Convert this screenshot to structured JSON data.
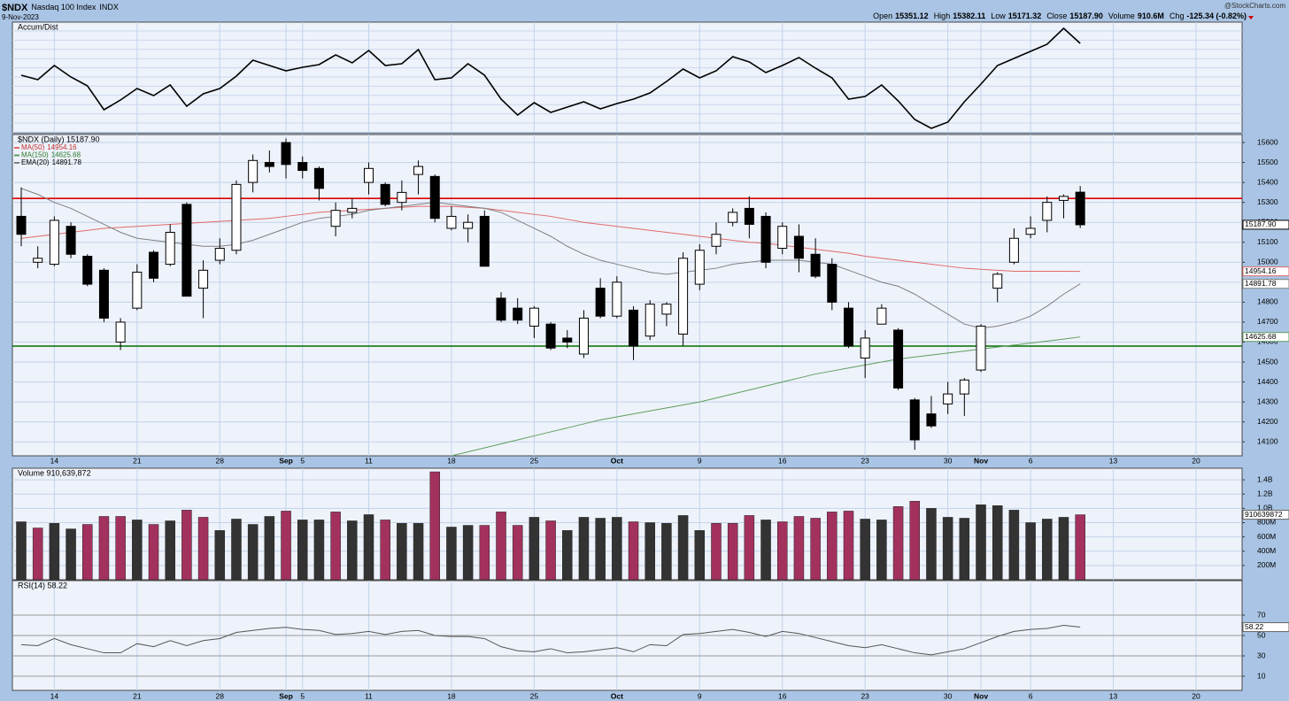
{
  "header": {
    "symbol": "$NDX",
    "name": "Nasdaq 100 Index",
    "exchange": "INDX",
    "date": "9-Nov-2023",
    "source": "@StockCharts.com",
    "quote": [
      [
        "Open",
        "15351.12"
      ],
      [
        "High",
        "15382.11"
      ],
      [
        "Low",
        "15171.32"
      ],
      [
        "Close",
        "15187.90"
      ],
      [
        "Volume",
        "910.6M"
      ],
      [
        "Chg",
        "-125.34 (-0.82%)"
      ]
    ]
  },
  "chart_data": [
    {
      "type": "line",
      "title": "Accum/Dist",
      "color": "#000000",
      "ylim": [
        0,
        125
      ],
      "values": [
        65,
        60,
        76,
        63,
        53,
        26,
        37,
        50,
        42,
        54,
        30,
        44,
        50,
        64,
        82,
        76,
        70,
        74,
        77,
        88,
        79,
        93,
        76,
        78,
        94,
        60,
        62,
        78,
        65,
        38,
        20,
        34,
        23,
        29,
        35,
        27,
        33,
        38,
        45,
        58,
        72,
        62,
        70,
        86,
        80,
        68,
        76,
        85,
        73,
        62,
        38,
        41,
        54,
        36,
        15,
        5,
        12,
        35,
        55,
        76,
        84,
        92,
        100,
        118,
        101
      ]
    },
    {
      "type": "candlestick",
      "title": "$NDX (Daily) 15187.90",
      "close_label": "15187.90",
      "ylim": [
        14030,
        15640
      ],
      "yticks": [
        14100,
        14200,
        14300,
        14400,
        14500,
        14600,
        14700,
        14800,
        14900,
        15000,
        15100,
        15200,
        15300,
        15400,
        15500,
        15600
      ],
      "xticks": [
        {
          "value": 2,
          "label": "14"
        },
        {
          "value": 7,
          "label": "21"
        },
        {
          "value": 12,
          "label": "28"
        },
        {
          "value": 16,
          "label": "Sep"
        },
        {
          "value": 17,
          "label": "5"
        },
        {
          "value": 21,
          "label": "11"
        },
        {
          "value": 26,
          "label": "18"
        },
        {
          "value": 31,
          "label": "25"
        },
        {
          "value": 36,
          "label": "Oct"
        },
        {
          "value": 41,
          "label": "9"
        },
        {
          "value": 46,
          "label": "16"
        },
        {
          "value": 51,
          "label": "23"
        },
        {
          "value": 56,
          "label": "30"
        },
        {
          "value": 58,
          "label": "Nov"
        },
        {
          "value": 61,
          "label": "6"
        },
        {
          "value": 66,
          "label": "13"
        },
        {
          "value": 71,
          "label": "20"
        }
      ],
      "grid": true,
      "up_color": "#ffffff",
      "down_color": "#000000",
      "open": [
        15230,
        15000,
        14990,
        15180,
        15030,
        14960,
        14600,
        14770,
        15050,
        14990,
        15290,
        14870,
        15010,
        15060,
        15400,
        15500,
        15600,
        15500,
        15470,
        15180,
        15250,
        15400,
        15390,
        15300,
        15440,
        15430,
        15170,
        15170,
        15230,
        14820,
        14770,
        14680,
        14690,
        14620,
        14540,
        14870,
        14730,
        14760,
        14630,
        14740,
        14640,
        14890,
        15080,
        15200,
        15270,
        15230,
        15070,
        15130,
        15040,
        14990,
        14770,
        14520,
        14690,
        14660,
        14310,
        14240,
        14290,
        14340,
        14460,
        14870,
        15000,
        15140,
        15210,
        15310,
        15351.12
      ],
      "high": [
        15375,
        15080,
        15230,
        15200,
        15040,
        14970,
        14720,
        14990,
        15060,
        15190,
        15300,
        15010,
        15120,
        15410,
        15540,
        15560,
        15620,
        15530,
        15480,
        15300,
        15320,
        15500,
        15400,
        15410,
        15510,
        15440,
        15280,
        15240,
        15260,
        14850,
        14820,
        14780,
        14700,
        14660,
        14760,
        14920,
        14930,
        14780,
        14810,
        14800,
        15050,
        15090,
        15200,
        15270,
        15330,
        15250,
        15200,
        15190,
        15120,
        15020,
        14800,
        14660,
        14790,
        14670,
        14320,
        14330,
        14400,
        14420,
        14690,
        14950,
        15170,
        15230,
        15330,
        15340,
        15382.11
      ],
      "low": [
        15080,
        14970,
        14980,
        15020,
        14880,
        14700,
        14560,
        14760,
        14900,
        14980,
        14830,
        14720,
        14990,
        15040,
        15350,
        15450,
        15420,
        15420,
        15310,
        15130,
        15220,
        15340,
        15280,
        15260,
        15340,
        15200,
        15160,
        15100,
        14980,
        14700,
        14690,
        14620,
        14560,
        14570,
        14520,
        14720,
        14720,
        14510,
        14610,
        14680,
        14580,
        14860,
        15040,
        15180,
        15120,
        14970,
        15040,
        14950,
        14920,
        14760,
        14570,
        14420,
        14690,
        14360,
        14060,
        14170,
        14240,
        14230,
        14450,
        14800,
        14990,
        15120,
        15150,
        15220,
        15171.32
      ],
      "close": [
        15140,
        15020,
        15210,
        15040,
        14890,
        14720,
        14700,
        14950,
        14920,
        15150,
        14830,
        14960,
        15070,
        15390,
        15510,
        15480,
        15490,
        15460,
        15370,
        15260,
        15270,
        15470,
        15290,
        15350,
        15480,
        15220,
        15230,
        15200,
        14980,
        14710,
        14710,
        14770,
        14570,
        14600,
        14720,
        14730,
        14900,
        14580,
        14790,
        14790,
        15020,
        15060,
        15140,
        15250,
        15190,
        15000,
        15180,
        15020,
        14930,
        14800,
        14580,
        14620,
        14770,
        14370,
        14110,
        14180,
        14340,
        14410,
        14680,
        14940,
        15120,
        15170,
        15300,
        15330,
        15187.9
      ],
      "series": [
        {
          "name": "MA(50)",
          "color": "#e06a6a",
          "values": [
            15120,
            15130,
            15140,
            15150,
            15160,
            15170,
            15175,
            15180,
            15185,
            15190,
            15195,
            15200,
            15205,
            15210,
            15215,
            15220,
            15230,
            15240,
            15250,
            15255,
            15260,
            15265,
            15270,
            15275,
            15280,
            15280,
            15280,
            15275,
            15270,
            15260,
            15250,
            15240,
            15230,
            15215,
            15200,
            15190,
            15180,
            15170,
            15160,
            15150,
            15140,
            15130,
            15120,
            15110,
            15100,
            15095,
            15085,
            15075,
            15065,
            15055,
            15045,
            15030,
            15020,
            15010,
            15000,
            14990,
            14980,
            14970,
            14965,
            14960,
            14955,
            14955,
            14955,
            14955,
            14954.16
          ]
        },
        {
          "name": "MA(150)",
          "color": "#5f9e5f",
          "values": [
            null,
            null,
            null,
            null,
            null,
            null,
            null,
            null,
            null,
            null,
            null,
            null,
            null,
            null,
            null,
            null,
            null,
            null,
            null,
            null,
            null,
            null,
            null,
            null,
            null,
            null,
            14030,
            14050,
            14070,
            14090,
            14110,
            14130,
            14150,
            14170,
            14190,
            14210,
            14225,
            14240,
            14255,
            14270,
            14285,
            14300,
            14320,
            14340,
            14360,
            14380,
            14400,
            14420,
            14440,
            14455,
            14470,
            14485,
            14500,
            14515,
            14525,
            14535,
            14545,
            14555,
            14565,
            14575,
            14585,
            14595,
            14605,
            14615,
            14625.68
          ]
        },
        {
          "name": "EMA(20)",
          "color": "#808080",
          "values": [
            15370,
            15340,
            15300,
            15270,
            15230,
            15190,
            15150,
            15120,
            15110,
            15100,
            15090,
            15080,
            15080,
            15090,
            15110,
            15140,
            15170,
            15200,
            15220,
            15230,
            15240,
            15260,
            15270,
            15280,
            15290,
            15300,
            15290,
            15280,
            15270,
            15250,
            15210,
            15170,
            15130,
            15080,
            15040,
            15010,
            14990,
            14970,
            14950,
            14940,
            14950,
            14960,
            14970,
            14990,
            15000,
            15010,
            15010,
            15010,
            15000,
            14990,
            14960,
            14930,
            14900,
            14880,
            14840,
            14790,
            14740,
            14690,
            14670,
            14680,
            14700,
            14730,
            14780,
            14840,
            14891.78
          ]
        }
      ],
      "hlines": [
        {
          "value": 15320,
          "color": "#e00000"
        },
        {
          "value": 14580,
          "color": "#007000"
        }
      ]
    },
    {
      "type": "bar",
      "title": "Volume 910,639,872",
      "ylim": [
        0,
        1562500000
      ],
      "yticks": [
        {
          "value": 200000000,
          "label": "200M"
        },
        {
          "value": 400000000,
          "label": "400M"
        },
        {
          "value": 600000000,
          "label": "600M"
        },
        {
          "value": 800000000,
          "label": "800M"
        },
        {
          "value": 1000000000,
          "label": "1.0B"
        },
        {
          "value": 1200000000,
          "label": "1.2B"
        },
        {
          "value": 1400000000,
          "label": "1.4B"
        }
      ],
      "values": [
        812000000,
        725000000,
        790000000,
        712000000,
        775000000,
        887000000,
        887000000,
        838000000,
        775000000,
        825000000,
        975000000,
        875000000,
        690000000,
        850000000,
        775000000,
        887000000,
        962000000,
        838000000,
        838000000,
        950000000,
        825000000,
        912000000,
        838000000,
        790000000,
        790000000,
        1512000000,
        738000000,
        762000000,
        762000000,
        950000000,
        762000000,
        875000000,
        825000000,
        690000000,
        875000000,
        862000000,
        875000000,
        812000000,
        800000000,
        790000000,
        900000000,
        690000000,
        790000000,
        790000000,
        900000000,
        838000000,
        812000000,
        887000000,
        862000000,
        950000000,
        962000000,
        850000000,
        838000000,
        1025000000,
        1100000000,
        1000000000,
        875000000,
        862000000,
        1050000000,
        1038000000,
        975000000,
        800000000,
        850000000,
        875000000,
        910639872
      ],
      "colors": [
        "#333333",
        "#a3315e",
        "#333333",
        "#333333",
        "#a3315e",
        "#a3315e",
        "#a3315e",
        "#333333",
        "#a3315e",
        "#333333",
        "#a3315e",
        "#a3315e",
        "#333333",
        "#333333",
        "#333333",
        "#333333",
        "#a3315e",
        "#333333",
        "#333333",
        "#a3315e",
        "#333333",
        "#333333",
        "#a3315e",
        "#333333",
        "#333333",
        "#a3315e",
        "#333333",
        "#333333",
        "#a3315e",
        "#a3315e",
        "#a3315e",
        "#333333",
        "#a3315e",
        "#333333",
        "#333333",
        "#333333",
        "#333333",
        "#a3315e",
        "#333333",
        "#333333",
        "#333333",
        "#333333",
        "#a3315e",
        "#a3315e",
        "#a3315e",
        "#333333",
        "#a3315e",
        "#a3315e",
        "#a3315e",
        "#a3315e",
        "#a3315e",
        "#333333",
        "#333333",
        "#a3315e",
        "#a3315e",
        "#333333",
        "#333333",
        "#333333",
        "#333333",
        "#333333",
        "#333333",
        "#333333",
        "#333333",
        "#333333",
        "#a3315e"
      ]
    },
    {
      "type": "line",
      "title": "RSI(14) 58.22",
      "color": "#555555",
      "ylim": [
        0,
        100
      ],
      "yticks": [
        10,
        30,
        50,
        70
      ],
      "values": [
        41,
        40,
        47,
        41,
        37,
        33,
        33,
        42,
        39,
        45,
        40,
        45,
        47,
        53,
        55,
        57,
        58,
        56,
        55,
        51,
        52,
        54,
        51,
        54,
        55,
        50,
        49,
        49,
        47,
        39,
        35,
        34,
        37,
        33,
        34,
        36,
        38,
        34,
        41,
        40,
        51,
        52,
        54,
        56,
        53,
        49,
        54,
        52,
        48,
        44,
        40,
        38,
        41,
        37,
        33,
        31,
        34,
        37,
        43,
        49,
        54,
        56,
        57,
        60,
        58.22
      ]
    }
  ]
}
